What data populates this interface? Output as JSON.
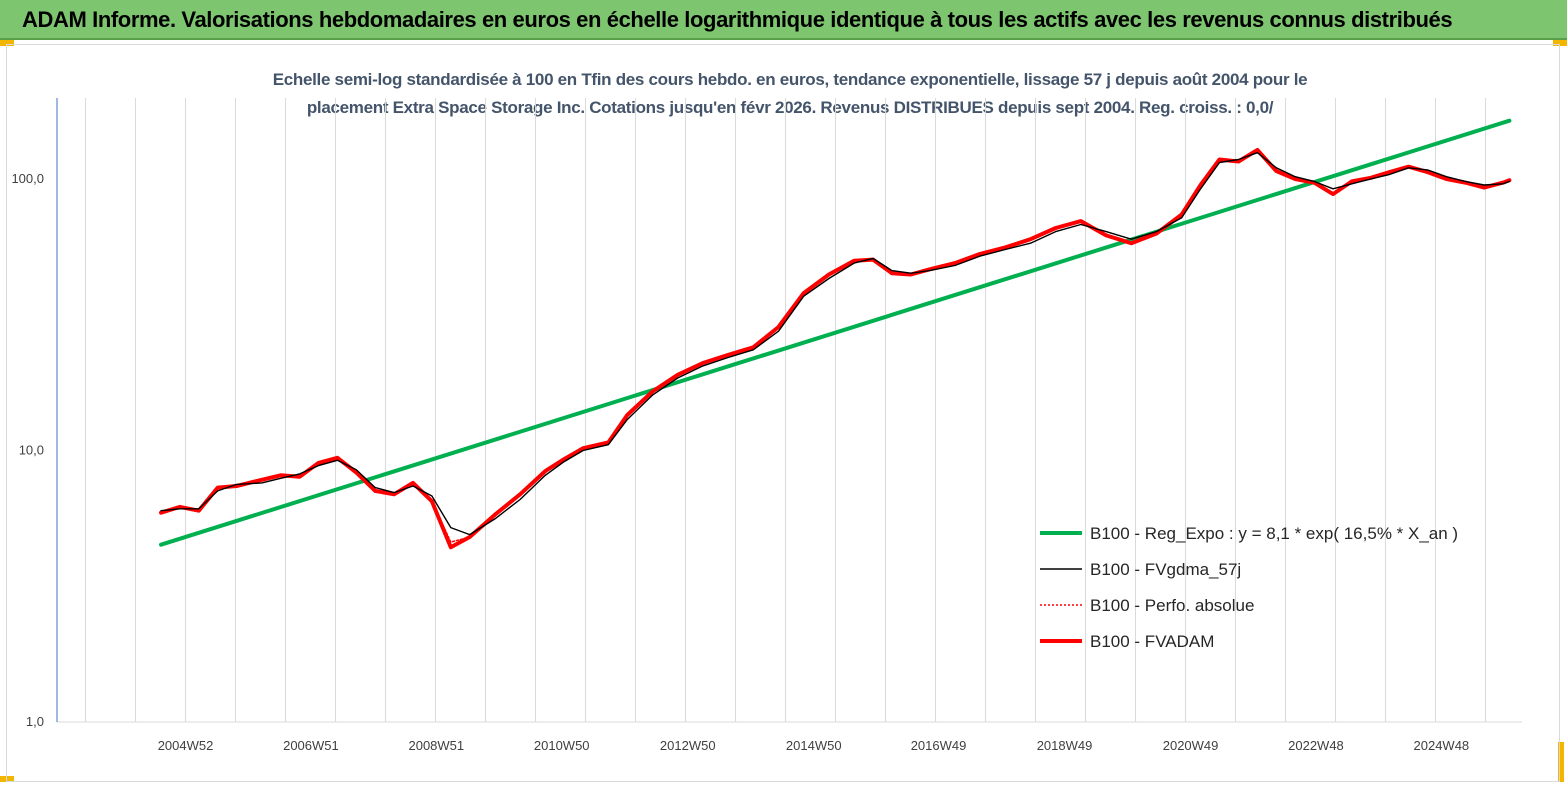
{
  "banner": {
    "title": "ADAM Informe. Valorisations hebdomadaires en euros en échelle logarithmique identique à tous les actifs avec les revenus connus distribués",
    "background": "#7dc56f"
  },
  "chart_data": {
    "type": "line",
    "title_line1": "Echelle semi-log standardisée à 100 en Tfin des cours hebdo. en euros, tendance exponentielle, lissage 57 j depuis août 2004 pour le",
    "title_line2": "placement Extra Space Storage Inc. Cotations jusqu'en févr 2026. Revenus DISTRIBUES depuis sept 2004. Reg. croiss. : 0,0/",
    "y_scale": "log",
    "ylim": [
      1,
      180
    ],
    "y_ticks": [
      {
        "value": 1,
        "label": "1,0"
      },
      {
        "value": 10,
        "label": "10,0"
      },
      {
        "value": 100,
        "label": "100,0"
      }
    ],
    "xlim": [
      2002.95,
      2026.2
    ],
    "x_ticks": [
      {
        "value": 2004.99,
        "label": "2004W52"
      },
      {
        "value": 2006.98,
        "label": "2006W51"
      },
      {
        "value": 2008.97,
        "label": "2008W51"
      },
      {
        "value": 2010.96,
        "label": "2010W50"
      },
      {
        "value": 2012.96,
        "label": "2012W50"
      },
      {
        "value": 2014.96,
        "label": "2014W50"
      },
      {
        "value": 2016.94,
        "label": "2016W49"
      },
      {
        "value": 2018.94,
        "label": "2018W49"
      },
      {
        "value": 2020.94,
        "label": "2020W49"
      },
      {
        "value": 2022.93,
        "label": "2022W48"
      },
      {
        "value": 2024.92,
        "label": "2024W48"
      }
    ],
    "grid": "vertical",
    "legend_position": "right",
    "series": [
      {
        "name": "B100 - Reg_Expo : y = 8,1 * exp( 16,5% *  X_an )",
        "color": "#00b050",
        "style": "solid-thick",
        "x": [
          2004.6,
          2026.0
        ],
        "y": [
          4.5,
          164
        ]
      },
      {
        "name": "B100 - FVgdma_57j",
        "color": "#000000",
        "style": "solid-thin",
        "x": [
          2004.6,
          2004.9,
          2005.2,
          2005.5,
          2005.8,
          2006.2,
          2006.5,
          2006.8,
          2007.1,
          2007.4,
          2007.7,
          2008.0,
          2008.3,
          2008.6,
          2008.9,
          2009.2,
          2009.5,
          2009.9,
          2010.3,
          2010.7,
          2011.0,
          2011.3,
          2011.7,
          2012.0,
          2012.4,
          2012.8,
          2013.2,
          2013.6,
          2014.0,
          2014.4,
          2014.8,
          2015.2,
          2015.6,
          2015.9,
          2016.2,
          2016.5,
          2016.8,
          2017.2,
          2017.6,
          2018.0,
          2018.4,
          2018.8,
          2019.2,
          2019.6,
          2020.0,
          2020.4,
          2020.8,
          2021.1,
          2021.4,
          2021.7,
          2022.0,
          2022.3,
          2022.6,
          2022.9,
          2023.2,
          2023.5,
          2023.8,
          2024.1,
          2024.4,
          2024.7,
          2025.0,
          2025.3,
          2025.6,
          2025.9,
          2026.0
        ],
        "y": [
          6.0,
          6.1,
          6.1,
          7.1,
          7.5,
          7.6,
          7.9,
          8.2,
          8.8,
          9.2,
          8.5,
          7.3,
          7.0,
          7.4,
          6.8,
          5.2,
          4.9,
          5.6,
          6.6,
          8.1,
          9.1,
          10.0,
          10.5,
          13.0,
          16.0,
          18.5,
          20.5,
          22.0,
          23.5,
          27.5,
          37.0,
          43.0,
          49.0,
          51.0,
          46.0,
          45.0,
          46.0,
          48.0,
          52.0,
          55.0,
          58.0,
          64.0,
          68.0,
          64.0,
          60.0,
          64.0,
          72.0,
          92.0,
          115.0,
          118.0,
          125.0,
          110.0,
          102.0,
          98.0,
          92.0,
          96.0,
          100.0,
          104.0,
          110.0,
          108.0,
          102.0,
          98.0,
          95.0,
          96.0,
          98.0
        ]
      },
      {
        "name": "B100 - Perfo. absolue",
        "color": "#ff0000",
        "style": "dotted",
        "x": [
          2004.6,
          2004.9,
          2005.2,
          2005.5,
          2005.8,
          2006.2,
          2006.5,
          2006.8,
          2007.1,
          2007.4,
          2007.7,
          2008.0,
          2008.3,
          2008.6,
          2008.9,
          2009.2,
          2009.5,
          2009.9,
          2010.3,
          2010.7,
          2011.0,
          2011.3,
          2011.7,
          2012.0,
          2012.4,
          2012.8,
          2013.2,
          2013.6,
          2014.0,
          2014.4,
          2014.8,
          2015.2,
          2015.6,
          2015.9,
          2016.2,
          2016.5,
          2016.8,
          2017.2,
          2017.6,
          2018.0,
          2018.4,
          2018.8,
          2019.2,
          2019.6,
          2020.0,
          2020.4,
          2020.8,
          2021.1,
          2021.4,
          2021.7,
          2022.0,
          2022.3,
          2022.6,
          2022.9,
          2023.2,
          2023.5,
          2023.8,
          2024.1,
          2024.4,
          2024.7,
          2025.0,
          2025.3,
          2025.6,
          2025.9,
          2026.0
        ],
        "y": [
          5.9,
          6.2,
          6.0,
          7.3,
          7.4,
          7.8,
          8.1,
          8.0,
          9.0,
          9.4,
          8.3,
          7.1,
          6.9,
          7.6,
          6.5,
          4.6,
          4.8,
          5.8,
          6.9,
          8.4,
          9.3,
          10.2,
          10.7,
          13.5,
          16.5,
          19.0,
          21.0,
          22.5,
          24.0,
          28.5,
          38.0,
          44.5,
          50.0,
          50.5,
          45.0,
          44.5,
          46.5,
          49.0,
          53.0,
          56.0,
          60.0,
          66.0,
          70.0,
          62.0,
          58.0,
          63.0,
          74.0,
          95.0,
          118.0,
          116.0,
          128.0,
          107.0,
          100.0,
          97.0,
          88.0,
          98.0,
          101.0,
          106.0,
          111.0,
          106.0,
          100.0,
          97.0,
          93.0,
          97.0,
          99.0
        ]
      },
      {
        "name": "B100 - FVADAM",
        "color": "#ff0000",
        "style": "solid-thick",
        "x": [
          2004.6,
          2004.9,
          2005.2,
          2005.5,
          2005.8,
          2006.2,
          2006.5,
          2006.8,
          2007.1,
          2007.4,
          2007.7,
          2008.0,
          2008.3,
          2008.6,
          2008.9,
          2009.2,
          2009.5,
          2009.9,
          2010.3,
          2010.7,
          2011.0,
          2011.3,
          2011.7,
          2012.0,
          2012.4,
          2012.8,
          2013.2,
          2013.6,
          2014.0,
          2014.4,
          2014.8,
          2015.2,
          2015.6,
          2015.9,
          2016.2,
          2016.5,
          2016.8,
          2017.2,
          2017.6,
          2018.0,
          2018.4,
          2018.8,
          2019.2,
          2019.6,
          2020.0,
          2020.4,
          2020.8,
          2021.1,
          2021.4,
          2021.7,
          2022.0,
          2022.3,
          2022.6,
          2022.9,
          2023.2,
          2023.5,
          2023.8,
          2024.1,
          2024.4,
          2024.7,
          2025.0,
          2025.3,
          2025.6,
          2025.9,
          2026.0
        ],
        "y": [
          5.9,
          6.2,
          6.0,
          7.3,
          7.4,
          7.8,
          8.1,
          8.0,
          9.0,
          9.4,
          8.3,
          7.1,
          6.9,
          7.6,
          6.5,
          4.4,
          4.8,
          5.8,
          6.9,
          8.4,
          9.3,
          10.2,
          10.7,
          13.5,
          16.5,
          19.0,
          21.0,
          22.5,
          24.0,
          28.5,
          38.0,
          44.5,
          50.0,
          50.5,
          45.0,
          44.5,
          46.5,
          49.0,
          53.0,
          56.0,
          60.0,
          66.0,
          70.0,
          62.0,
          58.0,
          63.0,
          74.0,
          95.0,
          118.0,
          116.0,
          128.0,
          107.0,
          100.0,
          97.0,
          88.0,
          98.0,
          101.0,
          106.0,
          111.0,
          106.0,
          100.0,
          97.0,
          93.0,
          97.0,
          99.0
        ]
      }
    ]
  }
}
